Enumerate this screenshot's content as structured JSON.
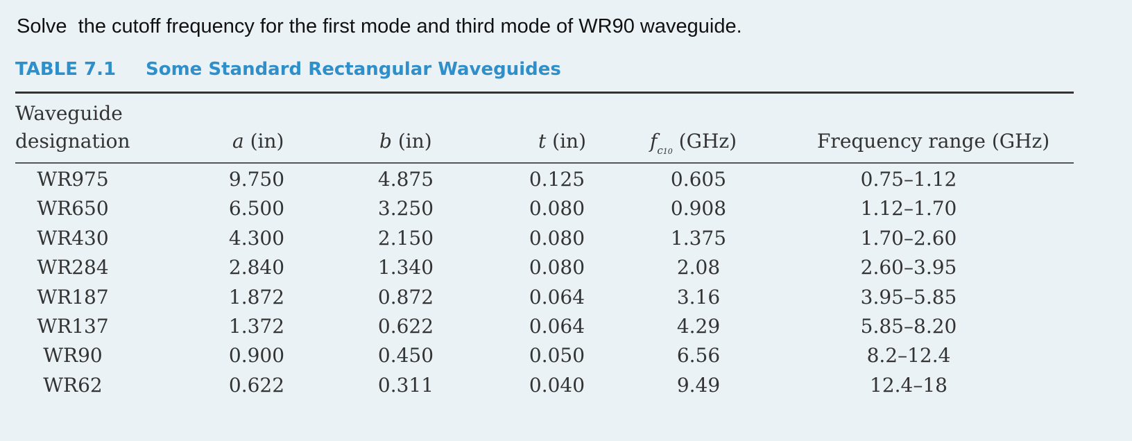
{
  "question": "Solve  the cutoff frequency for the first mode and third mode of WR90 waveguide.",
  "table": {
    "number": "TABLE 7.1",
    "title": "Some Standard Rectangular Waveguides",
    "headers": {
      "designation_line1": "Waveguide",
      "designation_line2": "designation",
      "a_symbol": "a",
      "a_unit": " (in)",
      "b_symbol": "b",
      "b_unit": " (in)",
      "t_symbol": "t",
      "t_unit": " (in)",
      "fc_symbol": "f",
      "fc_sub": "c",
      "fc_subsub": "10",
      "fc_unit": " (GHz)",
      "range": "Frequency range (GHz)"
    },
    "rows": [
      {
        "designation": "WR975",
        "a": "9.750",
        "b": "4.875",
        "t": "0.125",
        "fc": "0.605",
        "range": "0.75–1.12"
      },
      {
        "designation": "WR650",
        "a": "6.500",
        "b": "3.250",
        "t": "0.080",
        "fc": "0.908",
        "range": "1.12–1.70"
      },
      {
        "designation": "WR430",
        "a": "4.300",
        "b": "2.150",
        "t": "0.080",
        "fc": "1.375",
        "range": "1.70–2.60"
      },
      {
        "designation": "WR284",
        "a": "2.840",
        "b": "1.340",
        "t": "0.080",
        "fc": "2.08",
        "range": "2.60–3.95"
      },
      {
        "designation": "WR187",
        "a": "1.872",
        "b": "0.872",
        "t": "0.064",
        "fc": "3.16",
        "range": "3.95–5.85"
      },
      {
        "designation": "WR137",
        "a": "1.372",
        "b": "0.622",
        "t": "0.064",
        "fc": "4.29",
        "range": "5.85–8.20"
      },
      {
        "designation": "WR90",
        "a": "0.900",
        "b": "0.450",
        "t": "0.050",
        "fc": "6.56",
        "range": "8.2–12.4"
      },
      {
        "designation": "WR62",
        "a": "0.622",
        "b": "0.311",
        "t": "0.040",
        "fc": "9.49",
        "range": "12.4–18"
      }
    ]
  }
}
